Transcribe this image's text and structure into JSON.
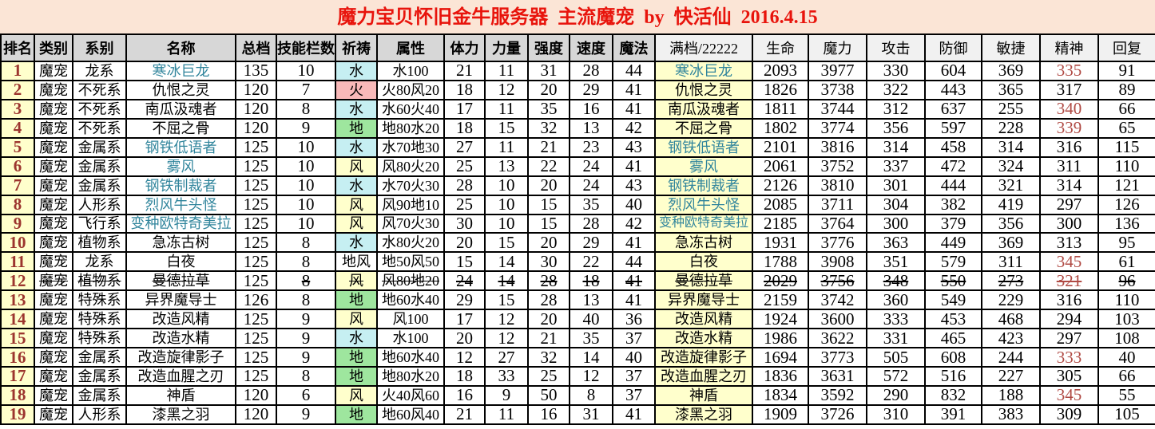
{
  "title": "魔力宝贝怀旧金牛服务器  主流魔宠  by  快活仙  2016.4.15",
  "colors": {
    "banner_background": "#fbe5d6",
    "title_red": "#e8140c",
    "header_gray": "#d7d7d7",
    "header_light": "#f1f1f1",
    "rank_red": "#9c352e",
    "name_blue": "#31859c",
    "stat_red": "#b04a44",
    "highlight_yellow": "#ffffcc",
    "pray_water": "#c6eff2",
    "pray_fire": "#f8b9b9",
    "pray_earth": "#9ee69e",
    "pray_wind": "#ffffcc",
    "pray_none": "#ffffff",
    "grid_border": "#000000"
  },
  "columns": [
    {
      "key": "rank",
      "label": "排名",
      "header_style": "gray"
    },
    {
      "key": "category",
      "label": "类别",
      "header_style": "gray"
    },
    {
      "key": "family",
      "label": "系别",
      "header_style": "gray"
    },
    {
      "key": "name",
      "label": "名称",
      "header_style": "gray"
    },
    {
      "key": "total",
      "label": "总档",
      "header_style": "gray"
    },
    {
      "key": "slots",
      "label": "技能栏数",
      "header_style": "gray"
    },
    {
      "key": "pray",
      "label": "祈祷",
      "header_style": "gray"
    },
    {
      "key": "attribute",
      "label": "属性",
      "header_style": "gray"
    },
    {
      "key": "vitality",
      "label": "体力",
      "header_style": "gray"
    },
    {
      "key": "strength",
      "label": "力量",
      "header_style": "gray"
    },
    {
      "key": "intensity",
      "label": "强度",
      "header_style": "gray"
    },
    {
      "key": "speed",
      "label": "速度",
      "header_style": "gray"
    },
    {
      "key": "magic",
      "label": "魔法",
      "header_style": "gray"
    },
    {
      "key": "full",
      "label": "满档/22222",
      "header_style": "light"
    },
    {
      "key": "life",
      "label": "生命",
      "header_style": "light"
    },
    {
      "key": "mana",
      "label": "魔力",
      "header_style": "light"
    },
    {
      "key": "attack",
      "label": "攻击",
      "header_style": "light"
    },
    {
      "key": "defense",
      "label": "防御",
      "header_style": "light"
    },
    {
      "key": "agility",
      "label": "敏捷",
      "header_style": "light"
    },
    {
      "key": "spirit",
      "label": "精神",
      "header_style": "light"
    },
    {
      "key": "recovery",
      "label": "回复",
      "header_style": "light"
    }
  ],
  "rows": [
    {
      "rank": "1",
      "category": "魔宠",
      "family": "龙系",
      "name": "寒冰巨龙",
      "name_blue": true,
      "total": "135",
      "slots": "10",
      "pray": "水",
      "pray_element": "water",
      "attribute": "水100",
      "vitality": "21",
      "strength": "11",
      "intensity": "31",
      "speed": "28",
      "magic": "44",
      "full": "寒冰巨龙",
      "life": "2093",
      "mana": "3977",
      "attack": "330",
      "defense": "604",
      "agility": "369",
      "spirit": "335",
      "spirit_red": true,
      "recovery": "91",
      "struck": false
    },
    {
      "rank": "2",
      "category": "魔宠",
      "family": "不死系",
      "name": "仇恨之灵",
      "name_blue": false,
      "total": "120",
      "slots": "7",
      "pray": "火",
      "pray_element": "fire",
      "attribute": "火80风20",
      "vitality": "18",
      "strength": "12",
      "intensity": "20",
      "speed": "29",
      "magic": "41",
      "full": "仇恨之灵",
      "life": "1826",
      "mana": "3738",
      "attack": "322",
      "defense": "443",
      "agility": "365",
      "spirit": "317",
      "spirit_red": false,
      "recovery": "89",
      "struck": false
    },
    {
      "rank": "3",
      "category": "魔宠",
      "family": "不死系",
      "name": "南瓜汲魂者",
      "name_blue": false,
      "total": "120",
      "slots": "8",
      "pray": "水",
      "pray_element": "water",
      "attribute": "水60火40",
      "vitality": "17",
      "strength": "11",
      "intensity": "35",
      "speed": "16",
      "magic": "41",
      "full": "南瓜汲魂者",
      "life": "1811",
      "mana": "3744",
      "attack": "312",
      "defense": "637",
      "agility": "255",
      "spirit": "340",
      "spirit_red": true,
      "recovery": "66",
      "struck": false
    },
    {
      "rank": "4",
      "category": "魔宠",
      "family": "不死系",
      "name": "不屈之骨",
      "name_blue": false,
      "total": "120",
      "slots": "9",
      "pray": "地",
      "pray_element": "earth",
      "attribute": "地80水20",
      "vitality": "18",
      "strength": "15",
      "intensity": "32",
      "speed": "13",
      "magic": "42",
      "full": "不屈之骨",
      "life": "1802",
      "mana": "3774",
      "attack": "356",
      "defense": "597",
      "agility": "228",
      "spirit": "339",
      "spirit_red": true,
      "recovery": "65",
      "struck": false
    },
    {
      "rank": "5",
      "category": "魔宠",
      "family": "金属系",
      "name": "钢铁低语者",
      "name_blue": true,
      "total": "125",
      "slots": "10",
      "pray": "水",
      "pray_element": "water",
      "attribute": "水70地30",
      "vitality": "27",
      "strength": "11",
      "intensity": "21",
      "speed": "23",
      "magic": "43",
      "full": "钢铁低语者",
      "life": "2101",
      "mana": "3816",
      "attack": "314",
      "defense": "458",
      "agility": "314",
      "spirit": "316",
      "spirit_red": false,
      "recovery": "115",
      "struck": false
    },
    {
      "rank": "6",
      "category": "魔宠",
      "family": "金属系",
      "name": "雾风",
      "name_blue": true,
      "total": "125",
      "slots": "10",
      "pray": "风",
      "pray_element": "wind",
      "attribute": "风80火20",
      "vitality": "25",
      "strength": "13",
      "intensity": "22",
      "speed": "24",
      "magic": "41",
      "full": "雾风",
      "life": "2061",
      "mana": "3752",
      "attack": "337",
      "defense": "472",
      "agility": "324",
      "spirit": "311",
      "spirit_red": false,
      "recovery": "110",
      "struck": false
    },
    {
      "rank": "7",
      "category": "魔宠",
      "family": "金属系",
      "name": "钢铁制裁者",
      "name_blue": true,
      "total": "125",
      "slots": "10",
      "pray": "水",
      "pray_element": "water",
      "attribute": "水70火30",
      "vitality": "28",
      "strength": "10",
      "intensity": "20",
      "speed": "24",
      "magic": "43",
      "full": "钢铁制裁者",
      "life": "2126",
      "mana": "3810",
      "attack": "301",
      "defense": "444",
      "agility": "321",
      "spirit": "314",
      "spirit_red": false,
      "recovery": "121",
      "struck": false
    },
    {
      "rank": "8",
      "category": "魔宠",
      "family": "人形系",
      "name": "烈风牛头怪",
      "name_blue": true,
      "total": "125",
      "slots": "10",
      "pray": "风",
      "pray_element": "wind",
      "attribute": "风90地10",
      "vitality": "25",
      "strength": "10",
      "intensity": "15",
      "speed": "35",
      "magic": "40",
      "full": "烈风牛头怪",
      "life": "2085",
      "mana": "3711",
      "attack": "304",
      "defense": "382",
      "agility": "419",
      "spirit": "297",
      "spirit_red": false,
      "recovery": "126",
      "struck": false
    },
    {
      "rank": "9",
      "category": "魔宠",
      "family": "飞行系",
      "name": "变种欧特奇美拉",
      "name_blue": true,
      "total": "125",
      "slots": "10",
      "pray": "风",
      "pray_element": "wind",
      "attribute": "风70火30",
      "vitality": "30",
      "strength": "10",
      "intensity": "15",
      "speed": "28",
      "magic": "42",
      "full": "变种欧特奇美拉",
      "life": "2185",
      "mana": "3764",
      "attack": "300",
      "defense": "379",
      "agility": "356",
      "spirit": "300",
      "spirit_red": false,
      "recovery": "136",
      "struck": false
    },
    {
      "rank": "10",
      "category": "魔宠",
      "family": "植物系",
      "name": "急冻古树",
      "name_blue": false,
      "total": "125",
      "slots": "8",
      "pray": "水",
      "pray_element": "water",
      "attribute": "水80火20",
      "vitality": "20",
      "strength": "15",
      "intensity": "20",
      "speed": "29",
      "magic": "41",
      "full": "急冻古树",
      "life": "1931",
      "mana": "3776",
      "attack": "363",
      "defense": "449",
      "agility": "369",
      "spirit": "313",
      "spirit_red": false,
      "recovery": "95",
      "struck": false
    },
    {
      "rank": "11",
      "category": "魔宠",
      "family": "龙系",
      "name": "白夜",
      "name_blue": false,
      "total": "125",
      "slots": "8",
      "pray": "地风",
      "pray_element": "none",
      "attribute": "地50风50",
      "vitality": "15",
      "strength": "14",
      "intensity": "30",
      "speed": "22",
      "magic": "44",
      "full": "白夜",
      "life": "1788",
      "mana": "3908",
      "attack": "351",
      "defense": "579",
      "agility": "311",
      "spirit": "345",
      "spirit_red": true,
      "recovery": "61",
      "struck": false
    },
    {
      "rank": "12",
      "category": "魔宠",
      "family": "植物系",
      "name": "曼德拉草",
      "name_blue": false,
      "total": "125",
      "slots": "8",
      "pray": "风",
      "pray_element": "wind",
      "attribute": "风80地20",
      "vitality": "24",
      "strength": "14",
      "intensity": "28",
      "speed": "18",
      "magic": "41",
      "full": "曼德拉草",
      "life": "2029",
      "mana": "3756",
      "attack": "348",
      "defense": "550",
      "agility": "273",
      "spirit": "321",
      "spirit_red": true,
      "recovery": "96",
      "struck": true
    },
    {
      "rank": "13",
      "category": "魔宠",
      "family": "特殊系",
      "name": "异界魔导士",
      "name_blue": false,
      "total": "126",
      "slots": "8",
      "pray": "地",
      "pray_element": "earth",
      "attribute": "地60水40",
      "vitality": "29",
      "strength": "15",
      "intensity": "28",
      "speed": "13",
      "magic": "41",
      "full": "异界魔导士",
      "life": "2159",
      "mana": "3742",
      "attack": "360",
      "defense": "549",
      "agility": "229",
      "spirit": "316",
      "spirit_red": false,
      "recovery": "110",
      "struck": false
    },
    {
      "rank": "14",
      "category": "魔宠",
      "family": "特殊系",
      "name": "改造风精",
      "name_blue": false,
      "total": "125",
      "slots": "9",
      "pray": "风",
      "pray_element": "wind",
      "attribute": "风100",
      "vitality": "17",
      "strength": "12",
      "intensity": "20",
      "speed": "40",
      "magic": "36",
      "full": "改造风精",
      "life": "1924",
      "mana": "3600",
      "attack": "333",
      "defense": "453",
      "agility": "468",
      "spirit": "294",
      "spirit_red": false,
      "recovery": "103",
      "struck": false
    },
    {
      "rank": "15",
      "category": "魔宠",
      "family": "特殊系",
      "name": "改造水精",
      "name_blue": false,
      "total": "125",
      "slots": "9",
      "pray": "水",
      "pray_element": "water",
      "attribute": "水100",
      "vitality": "20",
      "strength": "12",
      "intensity": "21",
      "speed": "35",
      "magic": "37",
      "full": "改造水精",
      "life": "1986",
      "mana": "3622",
      "attack": "331",
      "defense": "465",
      "agility": "423",
      "spirit": "297",
      "spirit_red": false,
      "recovery": "108",
      "struck": false
    },
    {
      "rank": "16",
      "category": "魔宠",
      "family": "金属系",
      "name": "改造旋律影子",
      "name_blue": false,
      "total": "125",
      "slots": "9",
      "pray": "地",
      "pray_element": "earth",
      "attribute": "地60水40",
      "vitality": "12",
      "strength": "27",
      "intensity": "32",
      "speed": "14",
      "magic": "40",
      "full": "改造旋律影子",
      "life": "1694",
      "mana": "3773",
      "attack": "505",
      "defense": "608",
      "agility": "244",
      "spirit": "333",
      "spirit_red": true,
      "recovery": "40",
      "struck": false
    },
    {
      "rank": "17",
      "category": "魔宠",
      "family": "金属系",
      "name": "改造血腥之刃",
      "name_blue": false,
      "total": "125",
      "slots": "8",
      "pray": "地",
      "pray_element": "earth",
      "attribute": "地80水20",
      "vitality": "18",
      "strength": "33",
      "intensity": "25",
      "speed": "12",
      "magic": "37",
      "full": "改造血腥之刃",
      "life": "1836",
      "mana": "3631",
      "attack": "572",
      "defense": "516",
      "agility": "227",
      "spirit": "305",
      "spirit_red": false,
      "recovery": "66",
      "struck": false
    },
    {
      "rank": "18",
      "category": "魔宠",
      "family": "金属系",
      "name": "神盾",
      "name_blue": false,
      "total": "120",
      "slots": "6",
      "pray": "风",
      "pray_element": "wind",
      "attribute": "火40风60",
      "vitality": "16",
      "strength": "9",
      "intensity": "50",
      "speed": "8",
      "magic": "37",
      "full": "神盾",
      "life": "1834",
      "mana": "3592",
      "attack": "290",
      "defense": "832",
      "agility": "188",
      "spirit": "345",
      "spirit_red": true,
      "recovery": "55",
      "struck": false
    },
    {
      "rank": "19",
      "category": "魔宠",
      "family": "人形系",
      "name": "漆黑之羽",
      "name_blue": false,
      "total": "120",
      "slots": "9",
      "pray": "地",
      "pray_element": "earth",
      "attribute": "地60风40",
      "vitality": "21",
      "strength": "11",
      "intensity": "16",
      "speed": "31",
      "magic": "41",
      "full": "漆黑之羽",
      "life": "1909",
      "mana": "3726",
      "attack": "310",
      "defense": "391",
      "agility": "383",
      "spirit": "309",
      "spirit_red": false,
      "recovery": "105",
      "struck": false
    }
  ]
}
